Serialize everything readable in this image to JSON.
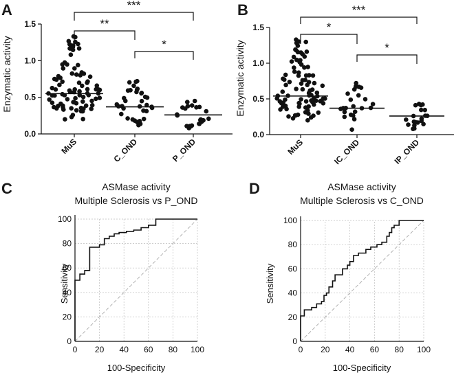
{
  "chart_data": [
    {
      "panel": "A",
      "type": "scatter",
      "ylabel": "Enzymatic activity",
      "ylim": [
        0,
        1.5
      ],
      "yticks": [
        "0.0",
        "0.5",
        "1.0",
        "1.5"
      ],
      "categories": [
        "MuS",
        "C_OND",
        "P_OND"
      ],
      "medians": [
        0.55,
        0.37,
        0.26
      ],
      "points_per_group": [
        90,
        35,
        24
      ],
      "ranges": [
        [
          0.2,
          1.33
        ],
        [
          0.12,
          0.72
        ],
        [
          0.08,
          0.45
        ]
      ],
      "comparisons": [
        {
          "groups": [
            "MuS",
            "C_OND"
          ],
          "label": "**"
        },
        {
          "groups": [
            "C_OND",
            "P_OND"
          ],
          "label": "*"
        },
        {
          "groups": [
            "MuS",
            "P_OND"
          ],
          "label": "***"
        }
      ]
    },
    {
      "panel": "B",
      "type": "scatter",
      "ylabel": "Enzymatic activity",
      "ylim": [
        0,
        1.5
      ],
      "yticks": [
        "0.0",
        "0.5",
        "1.0",
        "1.5"
      ],
      "categories": [
        "MuS",
        "IC_OND",
        "IP_OND"
      ],
      "medians": [
        0.54,
        0.37,
        0.26
      ],
      "points_per_group": [
        90,
        24,
        20
      ],
      "ranges": [
        [
          0.2,
          1.33
        ],
        [
          0.07,
          0.72
        ],
        [
          0.08,
          0.43
        ]
      ],
      "comparisons": [
        {
          "groups": [
            "MuS",
            "IC_OND"
          ],
          "label": "*"
        },
        {
          "groups": [
            "IC_OND",
            "IP_OND"
          ],
          "label": "*"
        },
        {
          "groups": [
            "MuS",
            "IP_OND"
          ],
          "label": "***"
        }
      ]
    },
    {
      "panel": "C",
      "type": "line",
      "title_line1": "ASMase activity",
      "title_line2": "Multiple Sclerosis vs P_OND",
      "xlabel": "100-Specificity",
      "ylabel": "Sensitivity",
      "xlim": [
        0,
        100
      ],
      "ylim": [
        0,
        100
      ],
      "ticks": [
        "0",
        "20",
        "40",
        "60",
        "80",
        "100"
      ],
      "roc": [
        [
          0,
          0
        ],
        [
          0,
          50
        ],
        [
          4,
          50
        ],
        [
          4,
          55
        ],
        [
          8,
          55
        ],
        [
          8,
          58
        ],
        [
          12,
          58
        ],
        [
          12,
          77
        ],
        [
          20,
          77
        ],
        [
          20,
          79
        ],
        [
          24,
          79
        ],
        [
          24,
          84
        ],
        [
          28,
          84
        ],
        [
          28,
          86
        ],
        [
          32,
          86
        ],
        [
          32,
          88
        ],
        [
          36,
          88
        ],
        [
          36,
          89
        ],
        [
          42,
          89
        ],
        [
          42,
          90
        ],
        [
          48,
          90
        ],
        [
          48,
          91
        ],
        [
          54,
          91
        ],
        [
          54,
          93
        ],
        [
          60,
          93
        ],
        [
          60,
          95
        ],
        [
          66,
          95
        ],
        [
          66,
          100
        ],
        [
          100,
          100
        ]
      ],
      "reference": [
        [
          0,
          0
        ],
        [
          100,
          100
        ]
      ]
    },
    {
      "panel": "D",
      "type": "line",
      "title_line1": "ASMase activity",
      "title_line2": "Multiple Sclerosis vs C_OND",
      "xlabel": "100-Specificity",
      "ylabel": "Sensitivity",
      "xlim": [
        0,
        100
      ],
      "ylim": [
        0,
        100
      ],
      "ticks": [
        "0",
        "20",
        "40",
        "60",
        "80",
        "100"
      ],
      "roc": [
        [
          0,
          0
        ],
        [
          0,
          21
        ],
        [
          3,
          21
        ],
        [
          3,
          26
        ],
        [
          9,
          26
        ],
        [
          9,
          28
        ],
        [
          13,
          28
        ],
        [
          13,
          31
        ],
        [
          17,
          31
        ],
        [
          17,
          33
        ],
        [
          19,
          33
        ],
        [
          19,
          38
        ],
        [
          21,
          38
        ],
        [
          21,
          40
        ],
        [
          23,
          40
        ],
        [
          23,
          45
        ],
        [
          26,
          45
        ],
        [
          26,
          50
        ],
        [
          28,
          50
        ],
        [
          28,
          55
        ],
        [
          34,
          55
        ],
        [
          34,
          60
        ],
        [
          38,
          60
        ],
        [
          38,
          63
        ],
        [
          40,
          63
        ],
        [
          40,
          66
        ],
        [
          43,
          66
        ],
        [
          43,
          71
        ],
        [
          47,
          71
        ],
        [
          47,
          73
        ],
        [
          53,
          73
        ],
        [
          53,
          76
        ],
        [
          57,
          76
        ],
        [
          57,
          78
        ],
        [
          62,
          78
        ],
        [
          62,
          80
        ],
        [
          66,
          80
        ],
        [
          66,
          82
        ],
        [
          70,
          82
        ],
        [
          70,
          87
        ],
        [
          72,
          87
        ],
        [
          72,
          90
        ],
        [
          74,
          90
        ],
        [
          74,
          94
        ],
        [
          76,
          94
        ],
        [
          76,
          96
        ],
        [
          80,
          96
        ],
        [
          80,
          100
        ],
        [
          100,
          100
        ]
      ],
      "reference": [
        [
          0,
          0
        ],
        [
          100,
          100
        ]
      ]
    }
  ]
}
